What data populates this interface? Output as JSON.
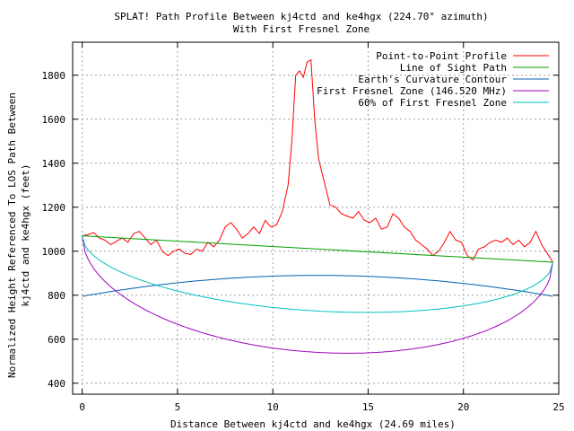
{
  "chart_data": {
    "type": "line",
    "title": "SPLAT! Path Profile Between kj4ctd and ke4hgx (224.70° azimuth)",
    "subtitle": "With First Fresnel Zone",
    "xlabel": "Distance Between kj4ctd and ke4hgx (24.69 miles)",
    "ylabel_line1": "Normalized Height Referenced To LOS Path Between",
    "ylabel_line2": "kj4ctd and ke4hgx (feet)",
    "xlim": [
      -0.5,
      25
    ],
    "ylim": [
      350,
      1950
    ],
    "x_ticks": [
      0,
      5,
      10,
      15,
      20,
      25
    ],
    "y_ticks": [
      400,
      600,
      800,
      1000,
      1200,
      1400,
      1600,
      1800
    ],
    "grid": true,
    "legend_position": "top-right",
    "series": [
      {
        "name": "Point-to-Point Profile",
        "color": "#ff0000",
        "x": [
          0,
          0.3,
          0.6,
          0.9,
          1.2,
          1.5,
          1.8,
          2.1,
          2.4,
          2.7,
          3.0,
          3.3,
          3.6,
          3.9,
          4.2,
          4.5,
          4.8,
          5.1,
          5.4,
          5.7,
          6.0,
          6.3,
          6.6,
          6.9,
          7.2,
          7.5,
          7.8,
          8.1,
          8.4,
          8.7,
          9.0,
          9.3,
          9.6,
          9.9,
          10.2,
          10.5,
          10.8,
          11.0,
          11.2,
          11.4,
          11.6,
          11.8,
          12.0,
          12.2,
          12.4,
          12.6,
          12.8,
          13.0,
          13.3,
          13.6,
          13.9,
          14.2,
          14.5,
          14.8,
          15.1,
          15.4,
          15.7,
          16.0,
          16.3,
          16.6,
          16.9,
          17.2,
          17.5,
          17.8,
          18.1,
          18.4,
          18.7,
          19.0,
          19.3,
          19.6,
          19.9,
          20.2,
          20.5,
          20.8,
          21.1,
          21.4,
          21.7,
          22.0,
          22.3,
          22.6,
          22.9,
          23.2,
          23.5,
          23.8,
          24.1,
          24.4,
          24.69
        ],
        "y": [
          1070,
          1075,
          1085,
          1060,
          1050,
          1030,
          1045,
          1060,
          1040,
          1080,
          1090,
          1060,
          1030,
          1050,
          1000,
          980,
          1000,
          1010,
          990,
          985,
          1010,
          1000,
          1040,
          1020,
          1050,
          1110,
          1130,
          1100,
          1060,
          1080,
          1110,
          1080,
          1140,
          1110,
          1120,
          1180,
          1300,
          1500,
          1800,
          1820,
          1790,
          1860,
          1870,
          1600,
          1420,
          1350,
          1280,
          1210,
          1200,
          1170,
          1160,
          1150,
          1180,
          1140,
          1130,
          1150,
          1100,
          1110,
          1170,
          1150,
          1110,
          1090,
          1050,
          1030,
          1010,
          980,
          1000,
          1040,
          1090,
          1050,
          1040,
          980,
          960,
          1010,
          1020,
          1040,
          1050,
          1040,
          1060,
          1030,
          1050,
          1020,
          1040,
          1090,
          1030,
          990,
          950
        ]
      },
      {
        "name": "Line of Sight Path",
        "color": "#00a000"
      },
      {
        "name": "Earth's Curvature Contour",
        "color": "#0060b0"
      },
      {
        "name": "First Fresnel Zone (146.520 MHz)",
        "color": "#a000c0"
      },
      {
        "name": "60% of First Fresnel Zone",
        "color": "#00c0c0"
      }
    ]
  }
}
